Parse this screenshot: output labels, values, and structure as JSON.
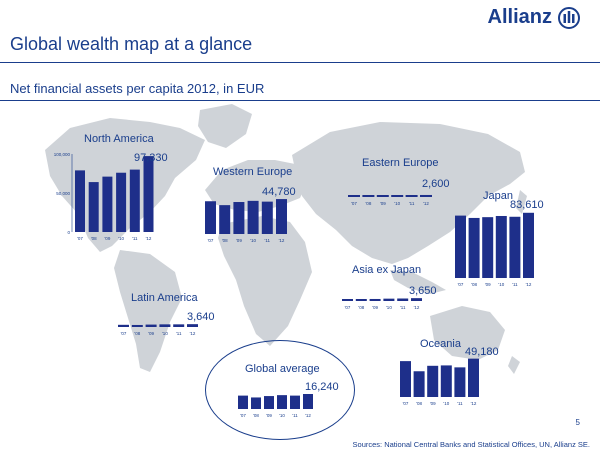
{
  "header": {
    "brand": "Allianz",
    "title": "Global wealth map at a glance",
    "subtitle": "Net financial assets per capita 2012, in EUR"
  },
  "colors": {
    "bar": "#1e2f8a",
    "text": "#1a3e8c",
    "map": "#cfd3d8"
  },
  "chart_data": [
    {
      "type": "bar",
      "title": "North America",
      "label": "97,330",
      "categories": [
        "'07",
        "'08",
        "'09",
        "'10",
        "'11",
        "'12"
      ],
      "values": [
        79000,
        64000,
        71000,
        76000,
        80000,
        97330
      ],
      "ylim": [
        0,
        100000
      ],
      "yticks": [
        "100,000",
        "50,000",
        "0"
      ]
    },
    {
      "type": "bar",
      "title": "Western Europe",
      "label": "44,780",
      "categories": [
        "'07",
        "'08",
        "'09",
        "'10",
        "'11",
        "'12"
      ],
      "values": [
        42000,
        37000,
        41000,
        42500,
        41500,
        44780
      ],
      "ylim": [
        0,
        100000
      ]
    },
    {
      "type": "bar",
      "title": "Eastern Europe",
      "label": "2,600",
      "categories": [
        "'07",
        "'08",
        "'09",
        "'10",
        "'11",
        "'12"
      ],
      "values": [
        2300,
        1800,
        2100,
        2400,
        2300,
        2600
      ],
      "ylim": [
        0,
        100000
      ]
    },
    {
      "type": "bar",
      "title": "Japan",
      "label": "83,610",
      "categories": [
        "'07",
        "'08",
        "'09",
        "'10",
        "'11",
        "'12"
      ],
      "values": [
        80000,
        77000,
        78000,
        79500,
        78500,
        83610
      ],
      "ylim": [
        0,
        100000
      ]
    },
    {
      "type": "bar",
      "title": "Asia ex Japan",
      "label": "3,650",
      "categories": [
        "'07",
        "'08",
        "'09",
        "'10",
        "'11",
        "'12"
      ],
      "values": [
        2500,
        2200,
        2600,
        3000,
        3200,
        3650
      ],
      "ylim": [
        0,
        100000
      ]
    },
    {
      "type": "bar",
      "title": "Latin America",
      "label": "3,640",
      "categories": [
        "'07",
        "'08",
        "'09",
        "'10",
        "'11",
        "'12"
      ],
      "values": [
        2800,
        2600,
        3100,
        3400,
        3400,
        3640
      ],
      "ylim": [
        0,
        100000
      ]
    },
    {
      "type": "bar",
      "title": "Oceania",
      "label": "49,180",
      "categories": [
        "'07",
        "'08",
        "'09",
        "'10",
        "'11",
        "'12"
      ],
      "values": [
        46000,
        33000,
        40000,
        40500,
        38000,
        49180
      ],
      "ylim": [
        0,
        100000
      ]
    },
    {
      "type": "bar",
      "title": "Global average",
      "label": "16,240",
      "categories": [
        "'07",
        "'08",
        "'09",
        "'10",
        "'11",
        "'12"
      ],
      "values": [
        14500,
        12500,
        14000,
        15000,
        14500,
        16240
      ],
      "ylim": [
        0,
        100000
      ]
    }
  ],
  "footer": {
    "page": "5",
    "sources": "Sources: National Central Banks and Statistical Offices, UN, Allianz SE."
  }
}
